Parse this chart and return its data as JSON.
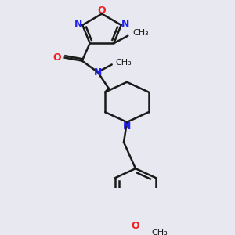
{
  "bg_color": "#e8e8f0",
  "bond_color": "#1a1a1a",
  "N_color": "#2222ee",
  "O_color": "#ee2222",
  "lw": 1.8,
  "figsize": [
    3.0,
    3.0
  ],
  "dpi": 100,
  "xlim": [
    0,
    300
  ],
  "ylim": [
    0,
    300
  ]
}
